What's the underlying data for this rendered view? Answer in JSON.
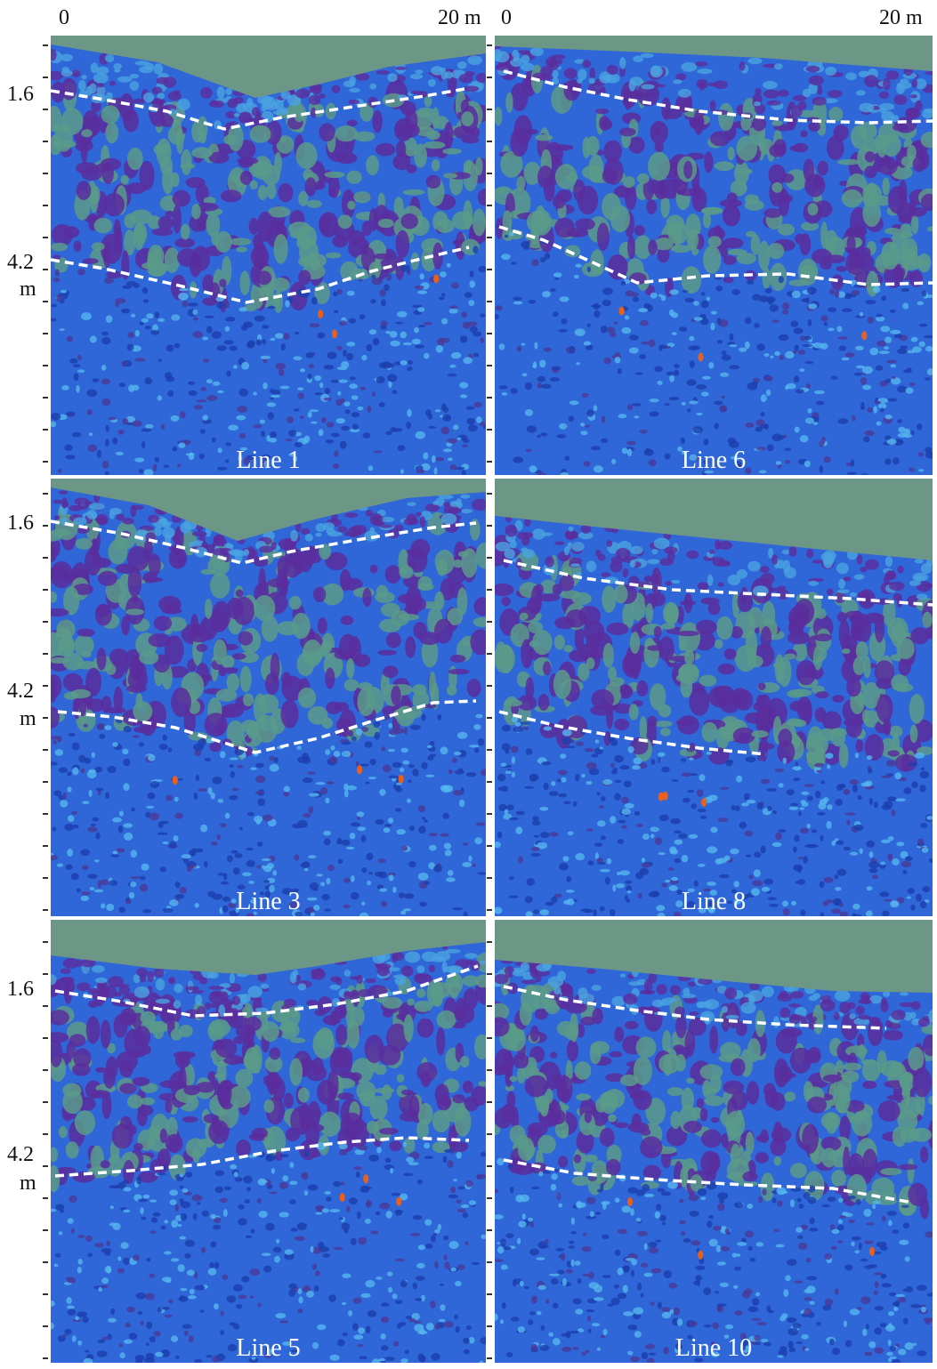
{
  "x_axis": {
    "left_start": "0",
    "left_end": "20  m",
    "right_start": "0",
    "right_end": "20  m"
  },
  "y_axis": {
    "upper": "1.6",
    "lower": "4.2",
    "unit": "m"
  },
  "panels": [
    {
      "label": "Line 1"
    },
    {
      "label": "Line 6"
    },
    {
      "label": "Line 3"
    },
    {
      "label": "Line 8"
    },
    {
      "label": "Line 5"
    },
    {
      "label": "Line 10"
    }
  ],
  "colors": {
    "background_blue": "#2f66d8",
    "purple": "#5b2d9e",
    "teal": "#5a9a8a",
    "air_green": "#6c9787",
    "dash_line": "#ffffff",
    "anomaly_orange": "#e8601c"
  }
}
